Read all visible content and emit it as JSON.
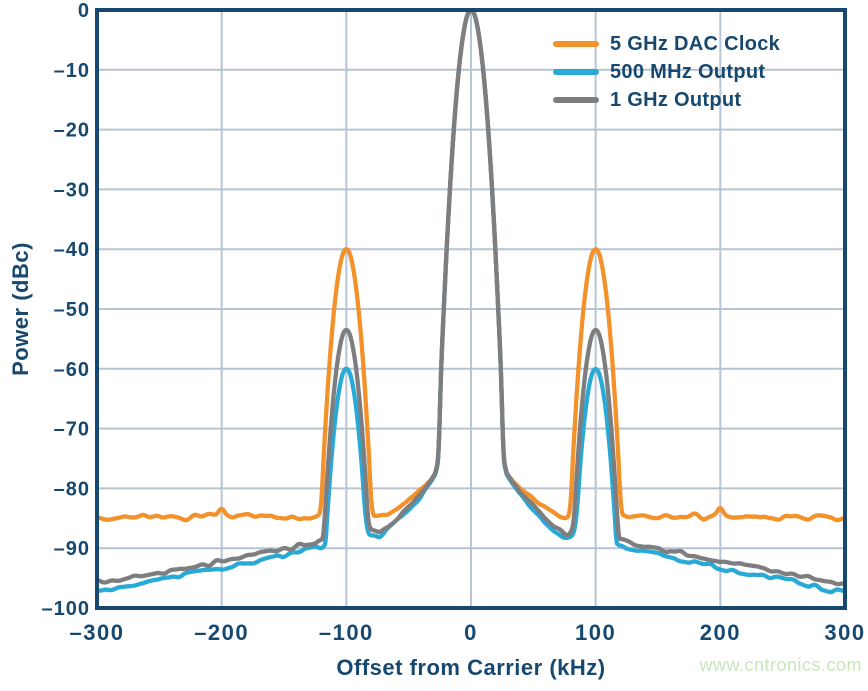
{
  "watermark": "www.cntronics.com",
  "colors": {
    "axis": "#17486F",
    "text": "#17486F",
    "grid": "#B6C4D3",
    "background": "#ffffff",
    "watermark": "#C9E6BA"
  },
  "chart_data": {
    "type": "line",
    "title": "",
    "xlabel": "Offset from Carrier (kHz)",
    "ylabel": "Power (dBc)",
    "xlim": [
      -300,
      300
    ],
    "ylim": [
      -100,
      0
    ],
    "grid": true,
    "legend_position": "top-right",
    "x_ticks": [
      -300,
      -200,
      -100,
      0,
      100,
      200,
      300
    ],
    "x_tick_labels": [
      "–300",
      "–200",
      "–100",
      "0",
      "100",
      "200",
      "300"
    ],
    "y_ticks": [
      0,
      -10,
      -20,
      -30,
      -40,
      -50,
      -60,
      -70,
      -80,
      -90,
      -100
    ],
    "y_tick_labels": [
      "0",
      "–10",
      "–20",
      "–30",
      "–40",
      "–50",
      "–60",
      "–70",
      "–80",
      "–90",
      "–100"
    ],
    "noise_db": 0.5,
    "line_width": 4.3,
    "series": [
      {
        "name": "5 GHz DAC Clock",
        "color": "#F3912B",
        "carrier_peak_dbc": 0,
        "spur_offset_khz": 100,
        "spur_level_dbc": -40,
        "noise_floor_dbc": -84.8,
        "points": [
          [
            -300,
            -84.8
          ],
          [
            -290,
            -85.1
          ],
          [
            -280,
            -84.6
          ],
          [
            -270,
            -85.0
          ],
          [
            -260,
            -84.5
          ],
          [
            -250,
            -84.9
          ],
          [
            -240,
            -84.6
          ],
          [
            -230,
            -85.0
          ],
          [
            -220,
            -84.7
          ],
          [
            -210,
            -84.5
          ],
          [
            -204,
            -84.2
          ],
          [
            -200,
            -83.2
          ],
          [
            -196,
            -84.2
          ],
          [
            -188,
            -84.8
          ],
          [
            -178,
            -84.5
          ],
          [
            -168,
            -84.9
          ],
          [
            -158,
            -84.6
          ],
          [
            -148,
            -84.9
          ],
          [
            -138,
            -84.6
          ],
          [
            -128,
            -84.8
          ],
          [
            -122,
            -84.5
          ],
          [
            -120,
            -82.0
          ],
          [
            -118,
            -74.0
          ],
          [
            -115,
            -63.6
          ],
          [
            -112,
            -55.1
          ],
          [
            -109,
            -48.5
          ],
          [
            -106,
            -43.8
          ],
          [
            -103,
            -40.9
          ],
          [
            -100,
            -40.0
          ],
          [
            -97,
            -40.9
          ],
          [
            -94,
            -43.8
          ],
          [
            -91,
            -48.5
          ],
          [
            -88,
            -55.1
          ],
          [
            -85,
            -63.6
          ],
          [
            -82,
            -74.0
          ],
          [
            -80,
            -82.0
          ],
          [
            -77,
            -84.7
          ],
          [
            -70,
            -84.4
          ],
          [
            -62,
            -83.5
          ],
          [
            -54,
            -82.5
          ],
          [
            -46,
            -81.3
          ],
          [
            -38,
            -79.8
          ],
          [
            -32,
            -78.4
          ],
          [
            -28,
            -76.9
          ],
          [
            -26,
            -73.5
          ],
          [
            -24,
            -60.5
          ],
          [
            -21,
            -46.3
          ],
          [
            -18,
            -34.0
          ],
          [
            -15,
            -23.6
          ],
          [
            -12,
            -15.1
          ],
          [
            -9,
            -8.5
          ],
          [
            -6,
            -3.8
          ],
          [
            -3,
            -0.9
          ],
          [
            0,
            0.0
          ],
          [
            3,
            -0.9
          ],
          [
            6,
            -3.8
          ],
          [
            9,
            -8.5
          ],
          [
            12,
            -15.1
          ],
          [
            15,
            -23.6
          ],
          [
            18,
            -34.0
          ],
          [
            21,
            -46.3
          ],
          [
            24,
            -60.5
          ],
          [
            26,
            -73.5
          ],
          [
            28,
            -76.9
          ],
          [
            32,
            -78.4
          ],
          [
            38,
            -79.8
          ],
          [
            46,
            -81.3
          ],
          [
            54,
            -82.5
          ],
          [
            62,
            -83.5
          ],
          [
            70,
            -84.4
          ],
          [
            77,
            -84.7
          ],
          [
            80,
            -82.0
          ],
          [
            82,
            -74.0
          ],
          [
            85,
            -63.6
          ],
          [
            88,
            -55.1
          ],
          [
            91,
            -48.5
          ],
          [
            94,
            -43.8
          ],
          [
            97,
            -40.9
          ],
          [
            100,
            -40.0
          ],
          [
            103,
            -40.9
          ],
          [
            106,
            -43.8
          ],
          [
            109,
            -48.5
          ],
          [
            112,
            -55.1
          ],
          [
            115,
            -63.6
          ],
          [
            118,
            -74.0
          ],
          [
            120,
            -82.0
          ],
          [
            122,
            -84.5
          ],
          [
            128,
            -84.8
          ],
          [
            138,
            -84.6
          ],
          [
            148,
            -84.9
          ],
          [
            158,
            -84.6
          ],
          [
            168,
            -84.9
          ],
          [
            178,
            -84.5
          ],
          [
            188,
            -84.8
          ],
          [
            196,
            -84.2
          ],
          [
            200,
            -83.2
          ],
          [
            204,
            -84.2
          ],
          [
            210,
            -84.5
          ],
          [
            220,
            -84.7
          ],
          [
            230,
            -85.0
          ],
          [
            240,
            -84.6
          ],
          [
            250,
            -84.9
          ],
          [
            260,
            -84.5
          ],
          [
            270,
            -85.0
          ],
          [
            280,
            -84.6
          ],
          [
            290,
            -85.1
          ],
          [
            300,
            -84.8
          ]
        ]
      },
      {
        "name": "500 MHz Output",
        "color": "#29A9D6",
        "carrier_peak_dbc": 0,
        "spur_offset_khz": 100,
        "spur_level_dbc": -60,
        "noise_floor_dbc": -97.3,
        "points": [
          [
            -300,
            -97.3
          ],
          [
            -287,
            -96.8
          ],
          [
            -274,
            -96.2
          ],
          [
            -261,
            -95.7
          ],
          [
            -248,
            -95.1
          ],
          [
            -235,
            -94.7
          ],
          [
            -222,
            -94.2
          ],
          [
            -209,
            -93.7
          ],
          [
            -196,
            -93.2
          ],
          [
            -183,
            -92.7
          ],
          [
            -170,
            -92.1
          ],
          [
            -157,
            -91.5
          ],
          [
            -144,
            -90.9
          ],
          [
            -132,
            -90.3
          ],
          [
            -122,
            -89.7
          ],
          [
            -117,
            -89.2
          ],
          [
            -115,
            -83.6
          ],
          [
            -112,
            -75.1
          ],
          [
            -109,
            -68.5
          ],
          [
            -106,
            -63.8
          ],
          [
            -103,
            -60.9
          ],
          [
            -100,
            -60.0
          ],
          [
            -97,
            -60.9
          ],
          [
            -94,
            -63.8
          ],
          [
            -91,
            -68.5
          ],
          [
            -88,
            -75.1
          ],
          [
            -85,
            -83.6
          ],
          [
            -83,
            -86.8
          ],
          [
            -80,
            -88.0
          ],
          [
            -75,
            -88.2
          ],
          [
            -68,
            -87.1
          ],
          [
            -60,
            -85.6
          ],
          [
            -52,
            -84.0
          ],
          [
            -44,
            -82.2
          ],
          [
            -36,
            -80.2
          ],
          [
            -30,
            -78.2
          ],
          [
            -28,
            -77.2
          ],
          [
            -26,
            -73.8
          ],
          [
            -24,
            -60.5
          ],
          [
            -21,
            -46.3
          ],
          [
            -18,
            -34.0
          ],
          [
            -15,
            -23.6
          ],
          [
            -12,
            -15.1
          ],
          [
            -9,
            -8.5
          ],
          [
            -6,
            -3.8
          ],
          [
            -3,
            -0.9
          ],
          [
            0,
            0.0
          ],
          [
            3,
            -0.9
          ],
          [
            6,
            -3.8
          ],
          [
            9,
            -8.5
          ],
          [
            12,
            -15.1
          ],
          [
            15,
            -23.6
          ],
          [
            18,
            -34.0
          ],
          [
            21,
            -46.3
          ],
          [
            24,
            -60.5
          ],
          [
            26,
            -73.8
          ],
          [
            28,
            -77.2
          ],
          [
            30,
            -78.2
          ],
          [
            36,
            -80.2
          ],
          [
            44,
            -82.2
          ],
          [
            52,
            -84.0
          ],
          [
            60,
            -85.6
          ],
          [
            68,
            -87.1
          ],
          [
            75,
            -88.2
          ],
          [
            80,
            -88.0
          ],
          [
            83,
            -86.8
          ],
          [
            85,
            -83.6
          ],
          [
            88,
            -75.1
          ],
          [
            91,
            -68.5
          ],
          [
            94,
            -63.8
          ],
          [
            97,
            -60.9
          ],
          [
            100,
            -60.0
          ],
          [
            103,
            -60.9
          ],
          [
            106,
            -63.8
          ],
          [
            109,
            -68.5
          ],
          [
            112,
            -75.1
          ],
          [
            115,
            -83.6
          ],
          [
            117,
            -89.2
          ],
          [
            122,
            -89.7
          ],
          [
            132,
            -90.3
          ],
          [
            144,
            -90.9
          ],
          [
            157,
            -91.5
          ],
          [
            170,
            -92.1
          ],
          [
            183,
            -92.7
          ],
          [
            196,
            -93.2
          ],
          [
            209,
            -93.7
          ],
          [
            222,
            -94.2
          ],
          [
            235,
            -94.7
          ],
          [
            248,
            -95.1
          ],
          [
            261,
            -95.7
          ],
          [
            274,
            -96.2
          ],
          [
            287,
            -96.8
          ],
          [
            300,
            -97.3
          ]
        ]
      },
      {
        "name": "1 GHz Output",
        "color": "#7E7E81",
        "carrier_peak_dbc": 0,
        "spur_offset_khz": 100,
        "spur_level_dbc": -53.5,
        "noise_floor_dbc": -95.9,
        "points": [
          [
            -300,
            -95.9
          ],
          [
            -287,
            -95.5
          ],
          [
            -274,
            -95.0
          ],
          [
            -261,
            -94.5
          ],
          [
            -248,
            -94.0
          ],
          [
            -235,
            -93.5
          ],
          [
            -222,
            -93.0
          ],
          [
            -209,
            -92.5
          ],
          [
            -196,
            -92.0
          ],
          [
            -183,
            -91.5
          ],
          [
            -170,
            -90.9
          ],
          [
            -157,
            -90.3
          ],
          [
            -144,
            -89.8
          ],
          [
            -132,
            -89.3
          ],
          [
            -122,
            -88.8
          ],
          [
            -119,
            -88.4
          ],
          [
            -117,
            -83.8
          ],
          [
            -115,
            -77.1
          ],
          [
            -112,
            -68.6
          ],
          [
            -109,
            -62.0
          ],
          [
            -106,
            -57.3
          ],
          [
            -103,
            -54.4
          ],
          [
            -100,
            -53.5
          ],
          [
            -97,
            -54.4
          ],
          [
            -94,
            -57.3
          ],
          [
            -91,
            -62.0
          ],
          [
            -88,
            -68.6
          ],
          [
            -85,
            -77.1
          ],
          [
            -83,
            -83.8
          ],
          [
            -82,
            -85.8
          ],
          [
            -80,
            -87.0
          ],
          [
            -75,
            -87.4
          ],
          [
            -68,
            -86.4
          ],
          [
            -60,
            -85.0
          ],
          [
            -52,
            -83.4
          ],
          [
            -44,
            -81.7
          ],
          [
            -36,
            -79.8
          ],
          [
            -30,
            -77.9
          ],
          [
            -28,
            -76.9
          ],
          [
            -26,
            -73.6
          ],
          [
            -24,
            -60.5
          ],
          [
            -21,
            -46.3
          ],
          [
            -18,
            -34.0
          ],
          [
            -15,
            -23.6
          ],
          [
            -12,
            -15.1
          ],
          [
            -9,
            -8.5
          ],
          [
            -6,
            -3.8
          ],
          [
            -3,
            -0.9
          ],
          [
            0,
            0.0
          ],
          [
            3,
            -0.9
          ],
          [
            6,
            -3.8
          ],
          [
            9,
            -8.5
          ],
          [
            12,
            -15.1
          ],
          [
            15,
            -23.6
          ],
          [
            18,
            -34.0
          ],
          [
            21,
            -46.3
          ],
          [
            24,
            -60.5
          ],
          [
            26,
            -73.6
          ],
          [
            28,
            -76.9
          ],
          [
            30,
            -77.9
          ],
          [
            36,
            -79.8
          ],
          [
            44,
            -81.7
          ],
          [
            52,
            -83.4
          ],
          [
            60,
            -85.0
          ],
          [
            68,
            -86.4
          ],
          [
            75,
            -87.4
          ],
          [
            80,
            -87.0
          ],
          [
            82,
            -85.8
          ],
          [
            83,
            -83.8
          ],
          [
            85,
            -77.1
          ],
          [
            88,
            -68.6
          ],
          [
            91,
            -62.0
          ],
          [
            94,
            -57.3
          ],
          [
            97,
            -54.4
          ],
          [
            100,
            -53.5
          ],
          [
            103,
            -54.4
          ],
          [
            106,
            -57.3
          ],
          [
            109,
            -62.0
          ],
          [
            112,
            -68.6
          ],
          [
            115,
            -77.1
          ],
          [
            117,
            -83.8
          ],
          [
            119,
            -88.4
          ],
          [
            122,
            -88.8
          ],
          [
            132,
            -89.3
          ],
          [
            144,
            -89.8
          ],
          [
            157,
            -90.3
          ],
          [
            170,
            -90.9
          ],
          [
            183,
            -91.5
          ],
          [
            196,
            -92.0
          ],
          [
            209,
            -92.5
          ],
          [
            222,
            -93.0
          ],
          [
            235,
            -93.5
          ],
          [
            248,
            -94.0
          ],
          [
            261,
            -94.5
          ],
          [
            274,
            -95.0
          ],
          [
            287,
            -95.5
          ],
          [
            300,
            -95.9
          ]
        ]
      }
    ]
  }
}
